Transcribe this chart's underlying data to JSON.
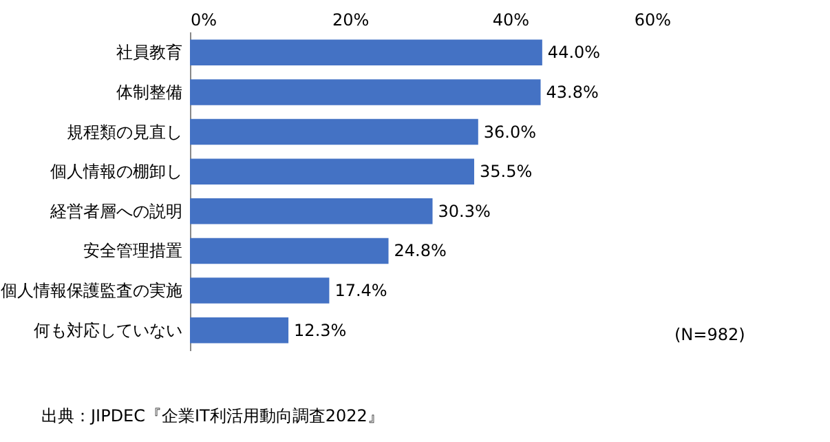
{
  "chart_data": {
    "type": "bar",
    "orientation": "horizontal",
    "categories": [
      "社員教育",
      "体制整備",
      "規程類の見直し",
      "個人情報の棚卸し",
      "経営者層への説明",
      "安全管理措置",
      "個人情報保護監査の実施",
      "何も対応していない"
    ],
    "values": [
      44.0,
      43.8,
      36.0,
      35.5,
      30.3,
      24.8,
      17.4,
      12.3
    ],
    "value_labels": [
      "44.0%",
      "43.8%",
      "36.0%",
      "35.5%",
      "30.3%",
      "24.8%",
      "17.4%",
      "12.3%"
    ],
    "color": "#4472c4",
    "xlim": [
      0,
      60
    ],
    "xticks": [
      {
        "value": 0,
        "label": "0%"
      },
      {
        "value": 20,
        "label": "20%"
      },
      {
        "value": 40,
        "label": "40%"
      },
      {
        "value": 60,
        "label": "60%"
      }
    ],
    "grid": false,
    "annotations": [
      "(N=982)",
      "出典：JIPDEC『企業IT利活用動向調査2022』"
    ]
  }
}
